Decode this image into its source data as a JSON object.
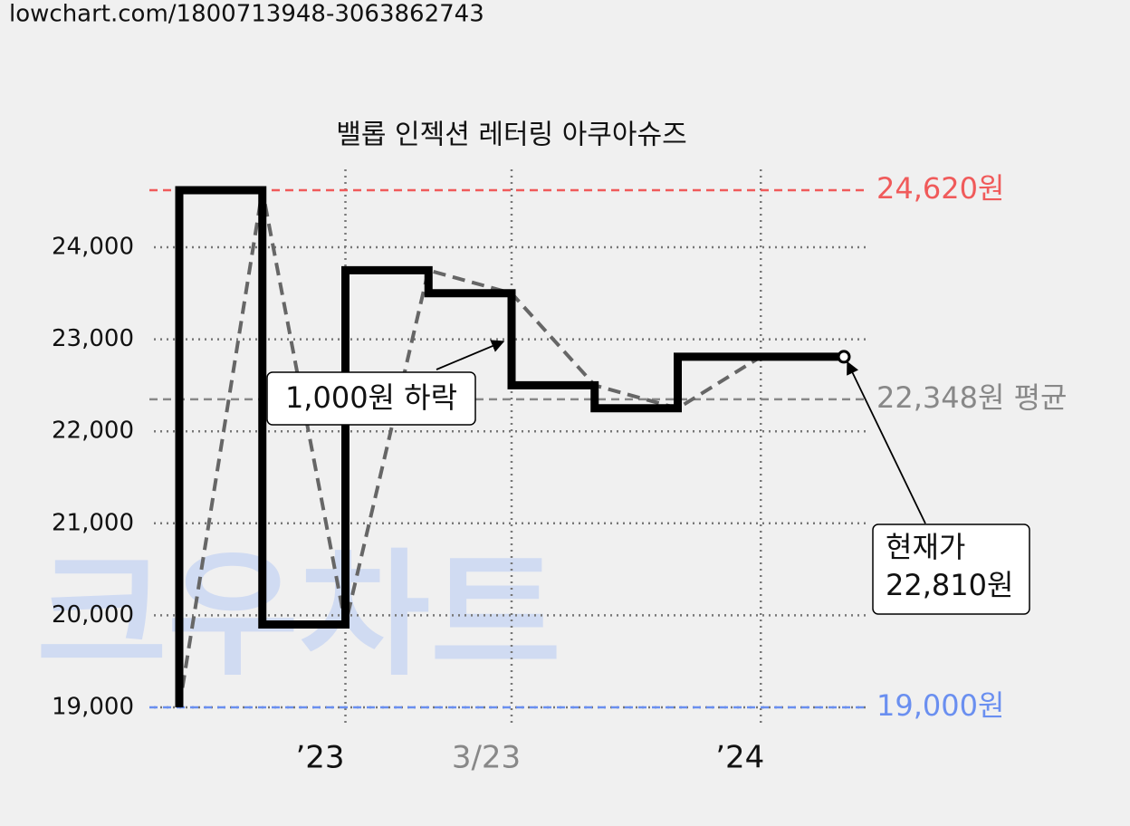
{
  "header": {
    "url": "lowchart.com/1800713948-3063862743"
  },
  "chart_data": {
    "type": "step-line",
    "title": "밸롭 인젝션 레터링 아쿠아슈즈",
    "watermark": "크우차트",
    "categories": [
      null,
      null,
      "’23",
      null,
      "3/23",
      null,
      null,
      "’24",
      null
    ],
    "category_colors": [
      "#111",
      "#111",
      "#111",
      "#111",
      "#888",
      "#111",
      "#111",
      "#111",
      "#111"
    ],
    "series": [
      {
        "color": "#000000",
        "trend_color": "#666666",
        "values": [
          19000,
          24620,
          19900,
          23750,
          23500,
          22500,
          22250,
          22810,
          22810
        ]
      }
    ],
    "ylim": [
      18800,
      25000
    ],
    "yticks": [
      {
        "value": 19000,
        "label": "19,000"
      },
      {
        "value": 20000,
        "label": "20,000"
      },
      {
        "value": 21000,
        "label": "21,000"
      },
      {
        "value": 22000,
        "label": "22,000"
      },
      {
        "value": 23000,
        "label": "23,000"
      },
      {
        "value": 24000,
        "label": "24,000"
      }
    ],
    "xgrid": [
      2,
      4,
      7
    ],
    "grid": true,
    "reference_lines": [
      {
        "value": 24620,
        "label": "24,620원",
        "color": "#f05a5a"
      },
      {
        "value": 22348,
        "label": "22,348원 평균",
        "color": "#888888"
      },
      {
        "value": 19000,
        "label": "19,000원",
        "color": "#6a8ff0"
      }
    ],
    "annotations": [
      {
        "text": "1,000원 하락"
      },
      {
        "text": "현재가"
      },
      {
        "text": "22,810원"
      }
    ]
  }
}
